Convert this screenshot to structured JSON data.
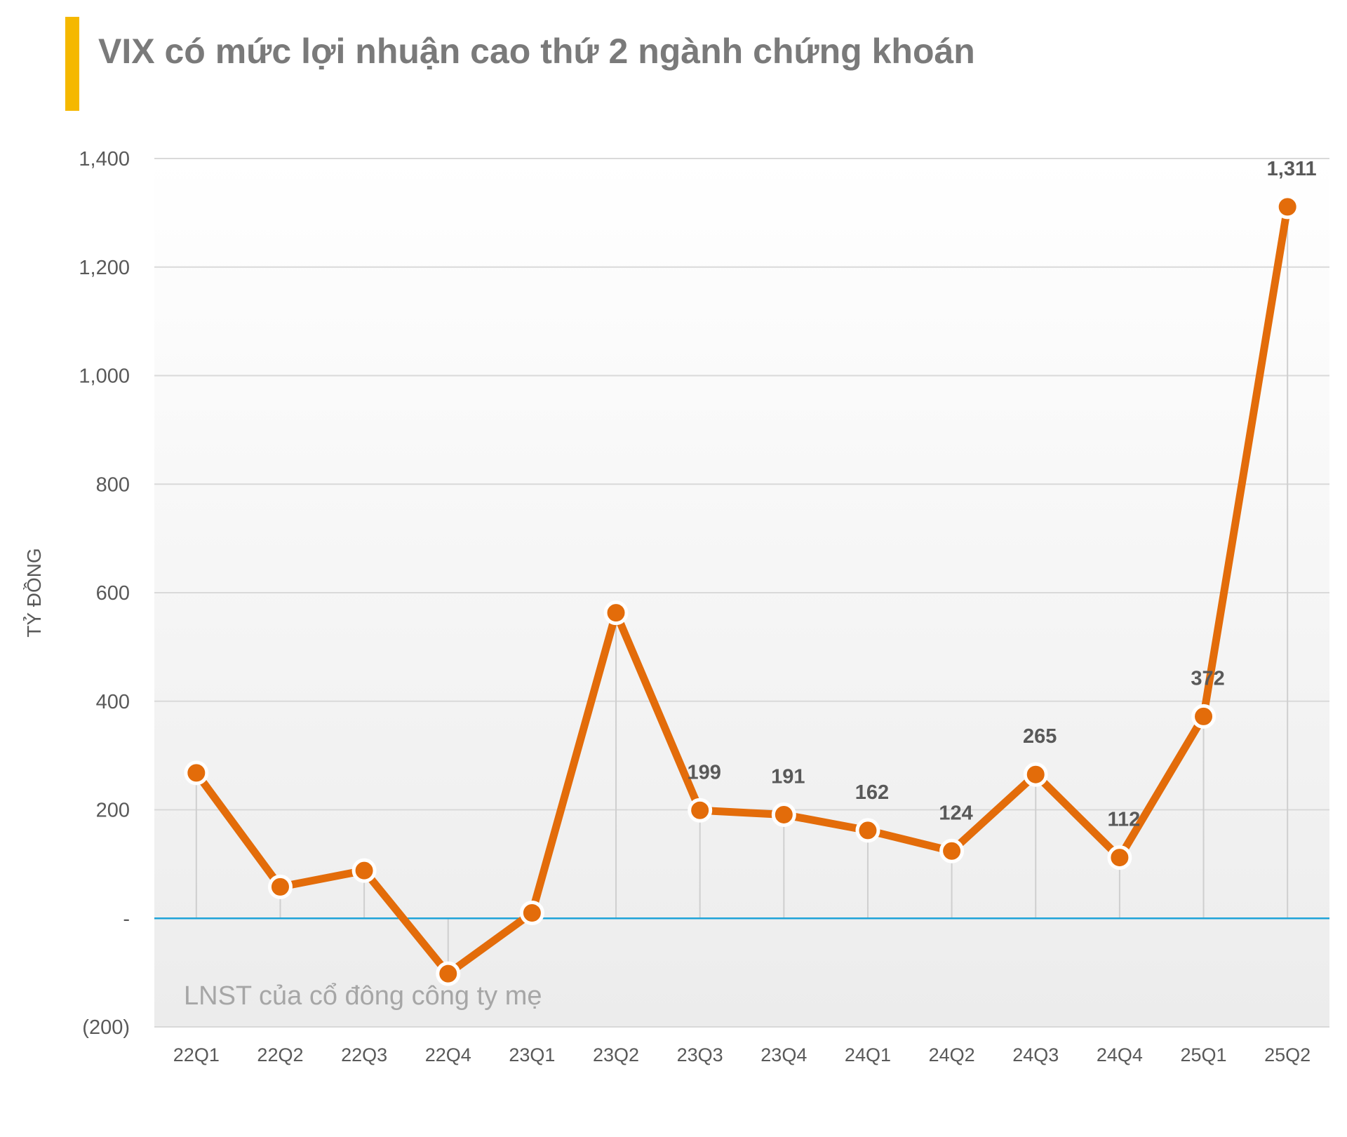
{
  "title": "VIX có mức lợi nhuận cao thứ 2 ngành chứng khoán",
  "colors": {
    "accent": "#f5b800",
    "line": "#e36c0a",
    "zero_line": "#1fa3d8",
    "grid": "#d9d9d9",
    "drop": "#cfcfcf"
  },
  "chart_data": {
    "type": "line",
    "title": "VIX có mức lợi nhuận cao thứ 2 ngành chứng khoán",
    "ylabel": "TỶ ĐỒNG",
    "xlabel": "",
    "annotation": "LNST của cổ đông công ty mẹ",
    "categories": [
      "22Q1",
      "22Q2",
      "22Q3",
      "22Q4",
      "23Q1",
      "23Q2",
      "23Q3",
      "23Q4",
      "24Q1",
      "24Q2",
      "24Q3",
      "24Q4",
      "25Q1",
      "25Q2"
    ],
    "values": [
      268,
      58,
      88,
      -102,
      10,
      563,
      199,
      191,
      162,
      124,
      265,
      112,
      372,
      1311
    ],
    "data_labels": [
      "",
      "",
      "",
      "",
      "",
      "",
      "199",
      "191",
      "162",
      "124",
      "265",
      "112",
      "372",
      "1,311"
    ],
    "ylim": [
      -200,
      1400
    ],
    "yticks": [
      -200,
      0,
      200,
      400,
      600,
      800,
      1000,
      1200,
      1400
    ],
    "ytick_labels": [
      "(200)",
      "-",
      "200",
      "400",
      "600",
      "800",
      "1,000",
      "1,200",
      "1,400"
    ],
    "grid": true
  }
}
